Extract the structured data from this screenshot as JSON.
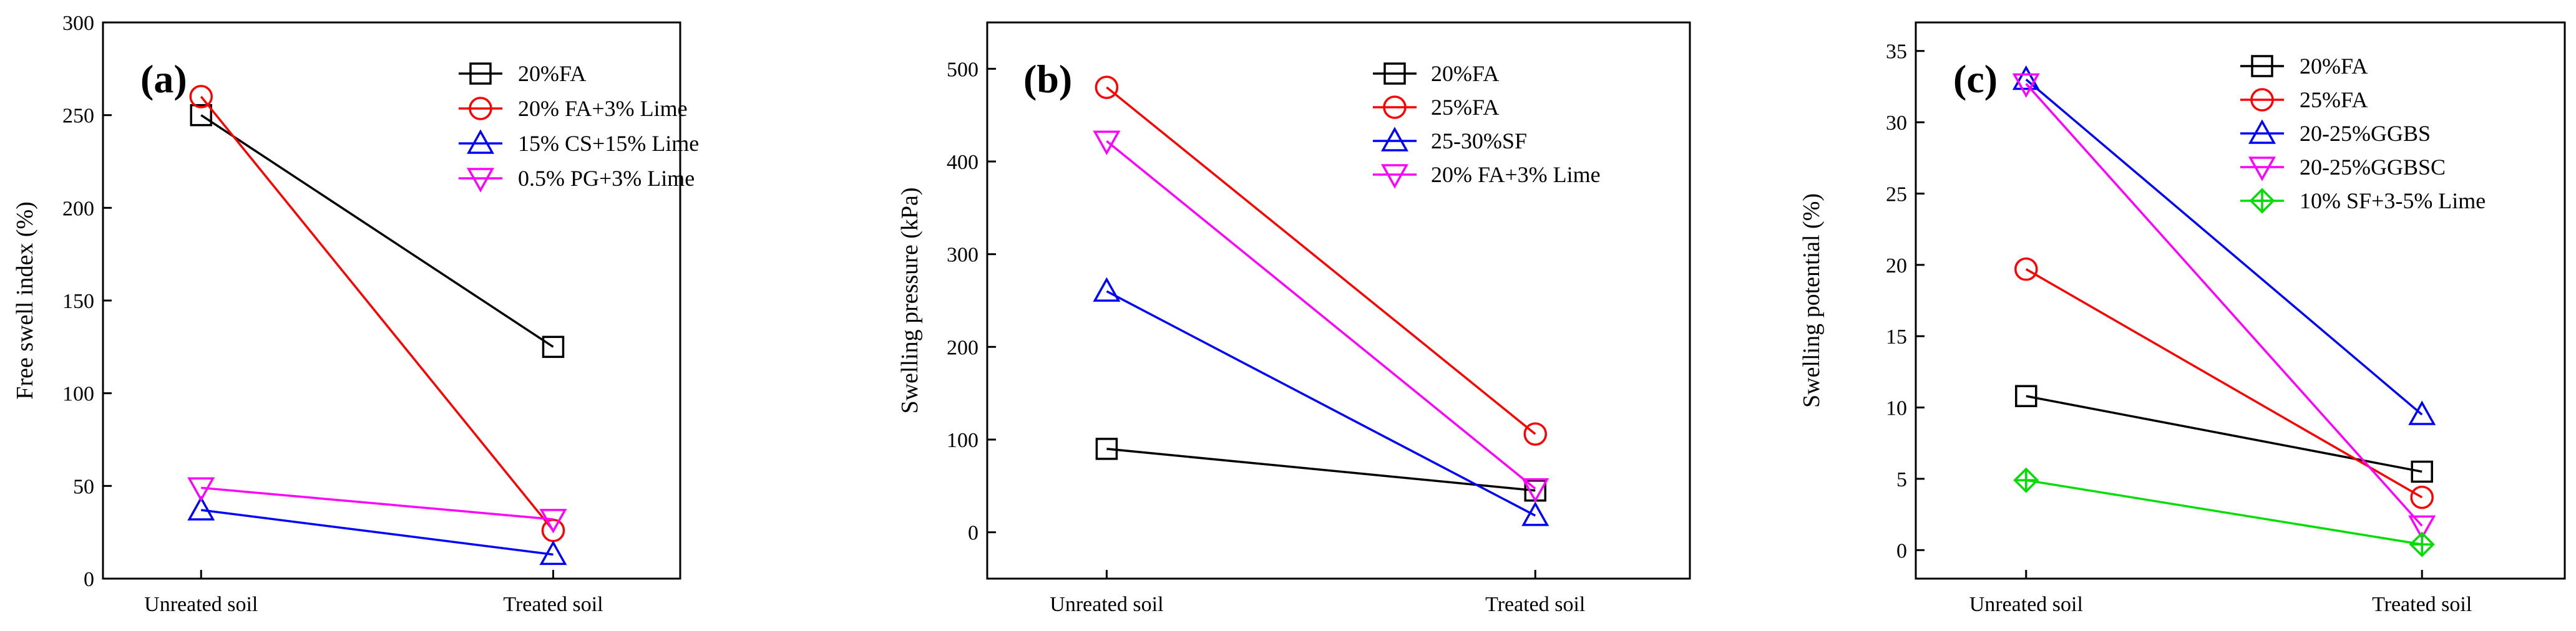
{
  "chart_data": [
    {
      "type": "line",
      "panel_label": "(a)",
      "xlabel": "",
      "ylabel": "Free swell index (%)",
      "categories": [
        "Unreated soil",
        "Treated soil"
      ],
      "ylim": [
        0,
        300
      ],
      "yticks": [
        0,
        50,
        100,
        150,
        200,
        250,
        300
      ],
      "legend_position": "top-right",
      "series": [
        {
          "name": "20%FA",
          "values": [
            250,
            125
          ],
          "color": "#000000",
          "marker": "square"
        },
        {
          "name": "20% FA+3% Lime",
          "values": [
            260,
            26
          ],
          "color": "#ff0000",
          "marker": "circle"
        },
        {
          "name": "15% CS+15% Lime",
          "values": [
            37,
            13
          ],
          "color": "#0000ff",
          "marker": "triangle-up"
        },
        {
          "name": "0.5% PG+3% Lime",
          "values": [
            49,
            32
          ],
          "color": "#ff00ff",
          "marker": "triangle-down"
        }
      ]
    },
    {
      "type": "line",
      "panel_label": "(b)",
      "xlabel": "",
      "ylabel": "Swelling pressure (kPa)",
      "categories": [
        "Unreated soil",
        "Treated soil"
      ],
      "ylim": [
        -50,
        550
      ],
      "yticks": [
        0,
        100,
        200,
        300,
        400,
        500
      ],
      "legend_position": "top-right",
      "series": [
        {
          "name": "20%FA",
          "values": [
            90,
            45
          ],
          "color": "#000000",
          "marker": "square"
        },
        {
          "name": "25%FA",
          "values": [
            480,
            106
          ],
          "color": "#ff0000",
          "marker": "circle"
        },
        {
          "name": "25-30%SF",
          "values": [
            260,
            18
          ],
          "color": "#0000ff",
          "marker": "triangle-up"
        },
        {
          "name": "20% FA+3% Lime",
          "values": [
            422,
            47
          ],
          "color": "#ff00ff",
          "marker": "triangle-down"
        }
      ]
    },
    {
      "type": "line",
      "panel_label": "(c)",
      "xlabel": "",
      "ylabel": "Swelling potential (%)",
      "categories": [
        "Unreated soil",
        "Treated soil"
      ],
      "ylim": [
        -2,
        37
      ],
      "yticks": [
        0,
        5,
        10,
        15,
        20,
        25,
        30,
        35
      ],
      "legend_position": "top-right",
      "series": [
        {
          "name": "20%FA",
          "values": [
            10.8,
            5.5
          ],
          "color": "#000000",
          "marker": "square"
        },
        {
          "name": "25%FA",
          "values": [
            19.7,
            3.7
          ],
          "color": "#ff0000",
          "marker": "circle"
        },
        {
          "name": "20-25%GGBS",
          "values": [
            33,
            9.5
          ],
          "color": "#0000ff",
          "marker": "triangle-up"
        },
        {
          "name": "20-25%GGBSC",
          "values": [
            32.7,
            1.7
          ],
          "color": "#ff00ff",
          "marker": "triangle-down"
        },
        {
          "name": "10% SF+3-5% Lime",
          "values": [
            4.9,
            0.4
          ],
          "color": "#00dd00",
          "marker": "diamond-plus"
        }
      ]
    }
  ]
}
